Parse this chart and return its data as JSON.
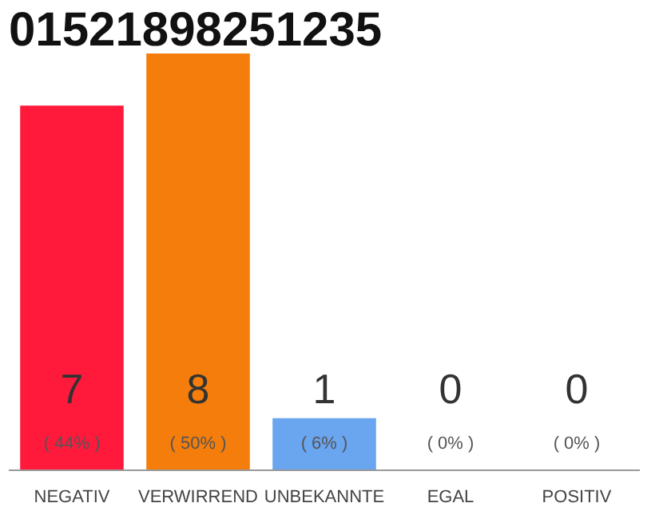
{
  "chart_data": {
    "type": "bar",
    "title": "01521898251235",
    "categories": [
      "NEGATIV",
      "VERWIRREND",
      "UNBEKANNTE",
      "EGAL",
      "POSITIV"
    ],
    "values": [
      7,
      8,
      1,
      0,
      0
    ],
    "colors": [
      "#ff1a3c",
      "#f47d0b",
      "#6aa5f0",
      "#cccccc",
      "#cccccc"
    ],
    "data_labels": true,
    "annotations": [
      "( 44% )",
      "( 50% )",
      "( 6% )",
      "( 0% )",
      "( 0% )"
    ],
    "grid": false
  }
}
